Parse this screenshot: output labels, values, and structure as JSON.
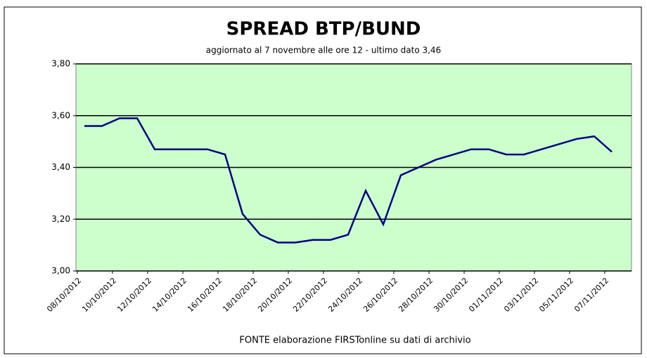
{
  "chart_data": {
    "type": "line",
    "title": "SPREAD  BTP/BUND",
    "subtitle": "aggiornato al 7 novembre alle ore 12 - ultimo dato 3,46",
    "source": "FONTE elaborazione FIRSTonline su dati di archivio",
    "categories": [
      "08/10/2012",
      null,
      "10/10/2012",
      null,
      "12/10/2012",
      null,
      "14/10/2012",
      null,
      "16/10/2012",
      null,
      "18/10/2012",
      null,
      "20/10/2012",
      null,
      "22/10/2012",
      null,
      "24/10/2012",
      null,
      "26/10/2012",
      null,
      "28/10/2012",
      null,
      "30/10/2012",
      null,
      "01/11/2012",
      null,
      "03/11/2012",
      null,
      "05/11/2012",
      null,
      "07/11/2012"
    ],
    "series": [
      {
        "color": "#000080",
        "values": [
          3.56,
          3.56,
          3.59,
          3.59,
          3.47,
          3.47,
          3.47,
          3.47,
          3.45,
          3.22,
          3.14,
          3.11,
          3.11,
          3.12,
          3.12,
          3.14,
          3.31,
          3.18,
          3.37,
          3.4,
          3.43,
          3.45,
          3.47,
          3.47,
          3.45,
          3.45,
          3.47,
          3.49,
          3.51,
          3.52,
          3.46
        ]
      }
    ],
    "ylim": [
      3.0,
      3.8
    ],
    "yticks": [
      {
        "value": 3.0,
        "label": "3,00"
      },
      {
        "value": 3.2,
        "label": "3,20"
      },
      {
        "value": 3.4,
        "label": "3,40"
      },
      {
        "value": 3.6,
        "label": "3,60"
      },
      {
        "value": 3.8,
        "label": "3,80"
      }
    ],
    "grid": true,
    "plot_color": "#ccffcc"
  }
}
